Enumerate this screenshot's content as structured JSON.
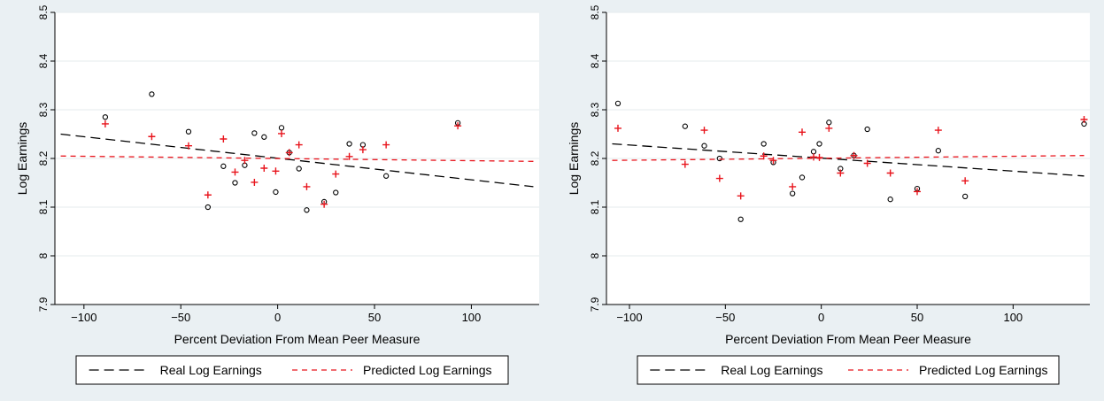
{
  "chart_data": [
    {
      "type": "scatter",
      "xlabel": "Percent Deviation From Mean Peer Measure",
      "ylabel": "Log Earnings",
      "xlim": [
        -115,
        135
      ],
      "ylim": [
        7.9,
        8.5
      ],
      "xticks": [
        -100,
        -50,
        0,
        50,
        100
      ],
      "yticks": [
        7.9,
        8,
        8.1,
        8.2,
        8.3,
        8.4,
        8.5
      ],
      "xtick_labels": [
        "−100",
        "−50",
        "0",
        "50",
        "100"
      ],
      "ytick_labels": [
        "7.9",
        "8",
        "8.1",
        "8.2",
        "8.3",
        "8.4",
        "8.5"
      ],
      "grid": true,
      "legend_position": "bottom",
      "series": [
        {
          "name": "Real Log Earnings",
          "marker": "circle",
          "line": "long-dash",
          "color": "#000000",
          "points": [
            [
              -89,
              8.285
            ],
            [
              -65,
              8.332
            ],
            [
              -46,
              8.255
            ],
            [
              -36,
              8.1
            ],
            [
              -28,
              8.184
            ],
            [
              -22,
              8.15
            ],
            [
              -17,
              8.186
            ],
            [
              -12,
              8.252
            ],
            [
              -7,
              8.244
            ],
            [
              -1,
              8.131
            ],
            [
              2,
              8.263
            ],
            [
              6,
              8.212
            ],
            [
              11,
              8.179
            ],
            [
              15,
              8.094
            ],
            [
              24,
              8.111
            ],
            [
              30,
              8.13
            ],
            [
              37,
              8.23
            ],
            [
              44,
              8.228
            ],
            [
              56,
              8.164
            ],
            [
              93,
              8.273
            ]
          ],
          "fit": [
            [
              -112,
              8.25
            ],
            [
              132,
              8.142
            ]
          ]
        },
        {
          "name": "Predicted Log Earnings",
          "marker": "plus",
          "line": "short-dash",
          "color": "#e8141c",
          "points": [
            [
              -89,
              8.271
            ],
            [
              -65,
              8.245
            ],
            [
              -46,
              8.226
            ],
            [
              -36,
              8.125
            ],
            [
              -28,
              8.24
            ],
            [
              -22,
              8.172
            ],
            [
              -17,
              8.196
            ],
            [
              -12,
              8.151
            ],
            [
              -7,
              8.18
            ],
            [
              -1,
              8.174
            ],
            [
              2,
              8.251
            ],
            [
              6,
              8.212
            ],
            [
              11,
              8.228
            ],
            [
              15,
              8.142
            ],
            [
              24,
              8.106
            ],
            [
              30,
              8.168
            ],
            [
              37,
              8.204
            ],
            [
              44,
              8.218
            ],
            [
              56,
              8.228
            ],
            [
              93,
              8.267
            ]
          ],
          "fit": [
            [
              -112,
              8.205
            ],
            [
              132,
              8.194
            ]
          ]
        }
      ]
    },
    {
      "type": "scatter",
      "xlabel": "Percent Deviation From Mean Peer Measure",
      "ylabel": "Log Earnings",
      "xlim": [
        -112,
        140
      ],
      "ylim": [
        7.9,
        8.5
      ],
      "xticks": [
        -100,
        -50,
        0,
        50,
        100
      ],
      "yticks": [
        7.9,
        8,
        8.1,
        8.2,
        8.3,
        8.4,
        8.5
      ],
      "xtick_labels": [
        "−100",
        "−50",
        "0",
        "50",
        "100"
      ],
      "ytick_labels": [
        "7.9",
        "8",
        "8.1",
        "8.2",
        "8.3",
        "8.4",
        "8.5"
      ],
      "grid": true,
      "legend_position": "bottom",
      "series": [
        {
          "name": "Real Log Earnings",
          "marker": "circle",
          "line": "long-dash",
          "color": "#000000",
          "points": [
            [
              -106,
              8.313
            ],
            [
              -71,
              8.266
            ],
            [
              -61,
              8.226
            ],
            [
              -53,
              8.2
            ],
            [
              -42,
              8.075
            ],
            [
              -30,
              8.23
            ],
            [
              -25,
              8.192
            ],
            [
              -15,
              8.128
            ],
            [
              -10,
              8.161
            ],
            [
              -4,
              8.214
            ],
            [
              -1,
              8.23
            ],
            [
              4,
              8.274
            ],
            [
              10,
              8.179
            ],
            [
              17,
              8.206
            ],
            [
              24,
              8.26
            ],
            [
              36,
              8.116
            ],
            [
              50,
              8.138
            ],
            [
              61,
              8.216
            ],
            [
              75,
              8.122
            ],
            [
              137,
              8.271
            ]
          ],
          "fit": [
            [
              -109,
              8.23
            ],
            [
              137,
              8.164
            ]
          ]
        },
        {
          "name": "Predicted Log Earnings",
          "marker": "plus",
          "line": "short-dash",
          "color": "#e8141c",
          "points": [
            [
              -106,
              8.262
            ],
            [
              -71,
              8.188
            ],
            [
              -61,
              8.258
            ],
            [
              -53,
              8.159
            ],
            [
              -42,
              8.123
            ],
            [
              -30,
              8.205
            ],
            [
              -25,
              8.196
            ],
            [
              -15,
              8.142
            ],
            [
              -10,
              8.254
            ],
            [
              -4,
              8.203
            ],
            [
              -1,
              8.202
            ],
            [
              4,
              8.262
            ],
            [
              10,
              8.17
            ],
            [
              17,
              8.206
            ],
            [
              24,
              8.19
            ],
            [
              36,
              8.17
            ],
            [
              50,
              8.132
            ],
            [
              61,
              8.258
            ],
            [
              75,
              8.154
            ],
            [
              137,
              8.28
            ]
          ],
          "fit": [
            [
              -109,
              8.196
            ],
            [
              137,
              8.206
            ]
          ]
        }
      ]
    }
  ]
}
